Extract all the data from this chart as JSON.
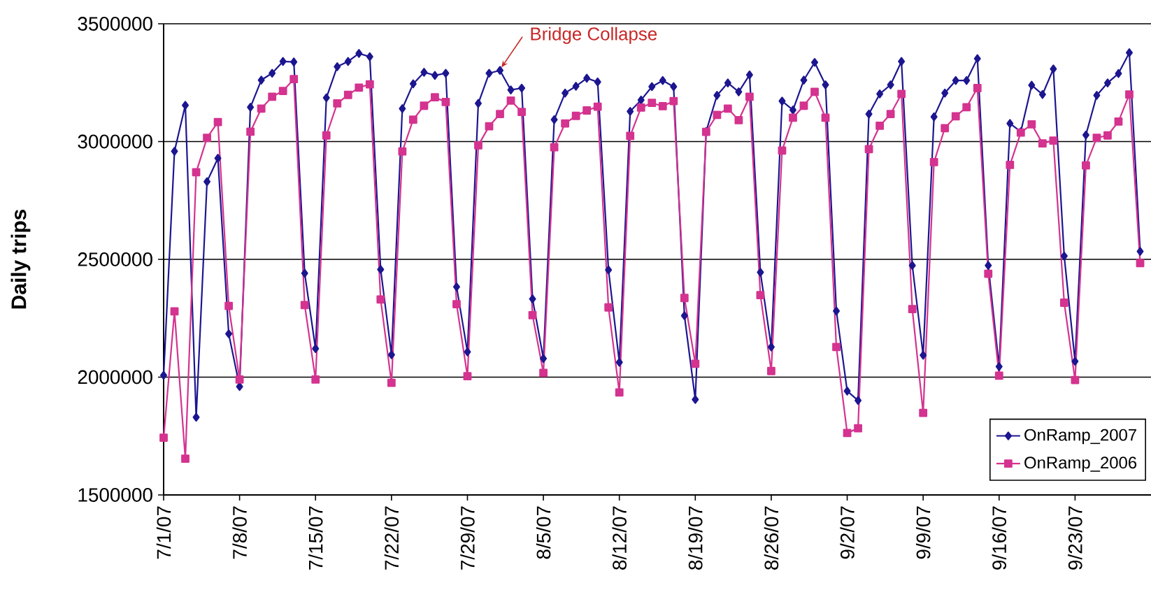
{
  "chart_data": {
    "type": "line",
    "ylabel": "Daily trips",
    "x": [
      "2007-07-01",
      "2007-07-02",
      "2007-07-03",
      "2007-07-04",
      "2007-07-05",
      "2007-07-06",
      "2007-07-07",
      "2007-07-08",
      "2007-07-09",
      "2007-07-10",
      "2007-07-11",
      "2007-07-12",
      "2007-07-13",
      "2007-07-14",
      "2007-07-15",
      "2007-07-16",
      "2007-07-17",
      "2007-07-18",
      "2007-07-19",
      "2007-07-20",
      "2007-07-21",
      "2007-07-22",
      "2007-07-23",
      "2007-07-24",
      "2007-07-25",
      "2007-07-26",
      "2007-07-27",
      "2007-07-28",
      "2007-07-29",
      "2007-07-30",
      "2007-07-31",
      "2007-08-01",
      "2007-08-02",
      "2007-08-03",
      "2007-08-04",
      "2007-08-05",
      "2007-08-06",
      "2007-08-07",
      "2007-08-08",
      "2007-08-09",
      "2007-08-10",
      "2007-08-11",
      "2007-08-12",
      "2007-08-13",
      "2007-08-14",
      "2007-08-15",
      "2007-08-16",
      "2007-08-17",
      "2007-08-18",
      "2007-08-19",
      "2007-08-20",
      "2007-08-21",
      "2007-08-22",
      "2007-08-23",
      "2007-08-24",
      "2007-08-25",
      "2007-08-26",
      "2007-08-27",
      "2007-08-28",
      "2007-08-29",
      "2007-08-30",
      "2007-08-31",
      "2007-09-01",
      "2007-09-02",
      "2007-09-03",
      "2007-09-04",
      "2007-09-05",
      "2007-09-06",
      "2007-09-07",
      "2007-09-08",
      "2007-09-09",
      "2007-09-10",
      "2007-09-11",
      "2007-09-12",
      "2007-09-13",
      "2007-09-14",
      "2007-09-15",
      "2007-09-16",
      "2007-09-17",
      "2007-09-18",
      "2007-09-19",
      "2007-09-20",
      "2007-09-21",
      "2007-09-22",
      "2007-09-23",
      "2007-09-24",
      "2007-09-25",
      "2007-09-26",
      "2007-09-27",
      "2007-09-28",
      "2007-09-29"
    ],
    "series": [
      {
        "name": "OnRamp_2007",
        "color": "#1c1690",
        "marker": "diamond",
        "values": [
          2008000,
          2959000,
          3154000,
          1830000,
          2830000,
          2929000,
          2184000,
          1960000,
          3146000,
          3261000,
          3290000,
          3340000,
          3338000,
          2441000,
          2121000,
          3186000,
          3318000,
          3340000,
          3374000,
          3360000,
          2457000,
          2095000,
          3140000,
          3245000,
          3294000,
          3281000,
          3290000,
          2383000,
          2107000,
          3162000,
          3290000,
          3302000,
          3219000,
          3227000,
          2332000,
          2079000,
          3093000,
          3206000,
          3235000,
          3269000,
          3253000,
          2455000,
          2063000,
          3128000,
          3176000,
          3233000,
          3259000,
          3233000,
          2261000,
          1905000,
          3043000,
          3196000,
          3249000,
          3211000,
          3283000,
          2445000,
          2128000,
          3172000,
          3134000,
          3261000,
          3336000,
          3241000,
          2281000,
          1941000,
          1901000,
          3117000,
          3202000,
          3241000,
          3340000,
          2474000,
          2093000,
          3105000,
          3206000,
          3259000,
          3259000,
          3352000,
          2474000,
          2045000,
          3077000,
          3042000,
          3239000,
          3200000,
          3308000,
          2514000,
          2067000,
          3028000,
          3196000,
          3249000,
          3289000,
          3377000,
          2534000
        ]
      },
      {
        "name": "OnRamp_2006",
        "color": "#d4338f",
        "marker": "square",
        "values": [
          1743000,
          2279000,
          1654000,
          2870000,
          3016000,
          3083000,
          2302000,
          1990000,
          3042000,
          3140000,
          3190000,
          3215000,
          3265000,
          2306000,
          1990000,
          3026000,
          3162000,
          3198000,
          3229000,
          3243000,
          2330000,
          1976000,
          2958000,
          3093000,
          3152000,
          3188000,
          3168000,
          2310000,
          2004000,
          2984000,
          3065000,
          3117000,
          3174000,
          3126000,
          2263000,
          2018000,
          2976000,
          3077000,
          3109000,
          3132000,
          3148000,
          2296000,
          1935000,
          3024000,
          3144000,
          3164000,
          3150000,
          3172000,
          2336000,
          2057000,
          3041000,
          3113000,
          3140000,
          3091000,
          3190000,
          2348000,
          2026000,
          2962000,
          3101000,
          3152000,
          3211000,
          3101000,
          2128000,
          1763000,
          1783000,
          2968000,
          3067000,
          3117000,
          3202000,
          2289000,
          1848000,
          2913000,
          3057000,
          3107000,
          3146000,
          3227000,
          2439000,
          2006000,
          2901000,
          3038000,
          3073000,
          2992000,
          3004000,
          2316000,
          1988000,
          2899000,
          3016000,
          3026000,
          3085000,
          3200000,
          2484000
        ]
      }
    ],
    "xlim": [
      "2007-07-01",
      "2007-09-30"
    ],
    "xticks": [
      {
        "value": "2007-07-01",
        "label": "7/1/07"
      },
      {
        "value": "2007-07-08",
        "label": "7/8/07"
      },
      {
        "value": "2007-07-15",
        "label": "7/15/07"
      },
      {
        "value": "2007-07-22",
        "label": "7/22/07"
      },
      {
        "value": "2007-07-29",
        "label": "7/29/07"
      },
      {
        "value": "2007-08-05",
        "label": "8/5/07"
      },
      {
        "value": "2007-08-12",
        "label": "8/12/07"
      },
      {
        "value": "2007-08-19",
        "label": "8/19/07"
      },
      {
        "value": "2007-08-26",
        "label": "8/26/07"
      },
      {
        "value": "2007-09-02",
        "label": "9/2/07"
      },
      {
        "value": "2007-09-09",
        "label": "9/9/07"
      },
      {
        "value": "2007-09-16",
        "label": "9/16/07"
      },
      {
        "value": "2007-09-23",
        "label": "9/23/07"
      }
    ],
    "ylim": [
      1500000,
      3500000
    ],
    "yticks": [
      1500000,
      2000000,
      2500000,
      3000000,
      3500000
    ],
    "grid": "y",
    "legend": "bottom right",
    "annotations": [
      {
        "text": "Bridge Collapse",
        "x": "2007-08-01",
        "y": 3302000
      }
    ]
  }
}
